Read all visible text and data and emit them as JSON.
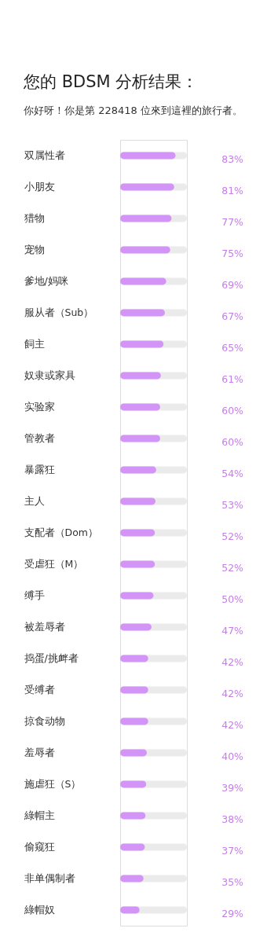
{
  "chart_data": {
    "type": "bar",
    "orientation": "horizontal",
    "title": "您的 BDSM 分析结果：",
    "subtitle": "你好呀！你是第 228418 位來到這裡的旅行者。",
    "categories": [
      "双属性者",
      "小朋友",
      "猎物",
      "宠物",
      "爹地/妈咪",
      "服从者（Sub）",
      "飼主",
      "奴隶或家具",
      "实验家",
      "管教者",
      "暴露狂",
      "主人",
      "支配者（Dom）",
      "受虐狂（M）",
      "缚手",
      "被羞辱者",
      "捣蛋/挑衅者",
      "受缚者",
      "掠食动物",
      "羞辱者",
      "施虐狂（S）",
      "綠帽主",
      "偷窥狂",
      "非单偶制者",
      "綠帽奴"
    ],
    "values": [
      83,
      81,
      77,
      75,
      69,
      67,
      65,
      61,
      60,
      60,
      54,
      53,
      52,
      52,
      50,
      47,
      42,
      42,
      42,
      40,
      39,
      38,
      37,
      35,
      29
    ],
    "value_labels": [
      "83%",
      "81%",
      "77%",
      "75%",
      "69%",
      "67%",
      "65%",
      "61%",
      "60%",
      "60%",
      "54%",
      "53%",
      "52%",
      "52%",
      "50%",
      "47%",
      "42%",
      "42%",
      "42%",
      "40%",
      "39%",
      "38%",
      "37%",
      "35%",
      "29%"
    ],
    "color": "#d394f7",
    "xlim": [
      0,
      100
    ],
    "tick_labels": "y"
  }
}
